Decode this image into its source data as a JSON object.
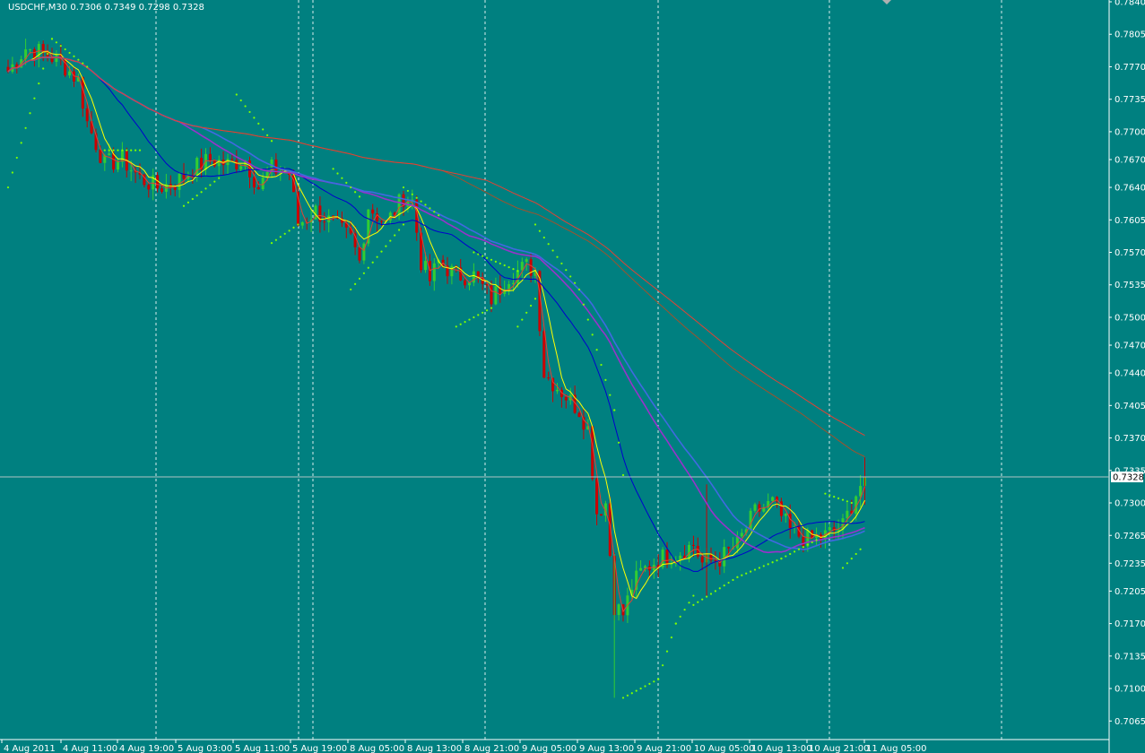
{
  "window": {
    "symbol_label": "USDCHF,M30",
    "ohlc_label": "0.7306 0.7349 0.7298 0.7328"
  },
  "colors": {
    "background": "#008080",
    "axis": "#ffffff",
    "bull": "#32cd32",
    "bear": "#cc0000",
    "sar": "#7fff00",
    "ma_yellow": "#ffff00",
    "ma_red": "#e34234",
    "ma_blue": "#0000cd",
    "ma_magenta": "#9932cc",
    "ma_slate": "#4169e1",
    "ma_brown": "#a0522d",
    "grid": "#ffffff"
  },
  "chart_data": {
    "type": "candlestick",
    "symbol": "USDCHF",
    "timeframe": "M30",
    "last_price": "0.7328",
    "ylim": [
      0.7045,
      0.784
    ],
    "y_ticks": [
      "0.7840",
      "0.7805",
      "0.7770",
      "0.7735",
      "0.7700",
      "0.7670",
      "0.7640",
      "0.7605",
      "0.7570",
      "0.7535",
      "0.7500",
      "0.7470",
      "0.7440",
      "0.7405",
      "0.7370",
      "0.7335",
      "0.7300",
      "0.7265",
      "0.7235",
      "0.7205",
      "0.7170",
      "0.7135",
      "0.7100",
      "0.7065"
    ],
    "x_ticks": [
      "4 Aug 2011",
      "4 Aug 11:00",
      "4 Aug 19:00",
      "5 Aug 03:00",
      "5 Aug 11:00",
      "5 Aug 19:00",
      "8 Aug 05:00",
      "8 Aug 13:00",
      "8 Aug 21:00",
      "9 Aug 05:00",
      "9 Aug 13:00",
      "9 Aug 21:00",
      "10 Aug 05:00",
      "10 Aug 13:00",
      "10 Aug 21:00",
      "11 Aug 05:00"
    ],
    "n_bars": 196,
    "close_anchors": [
      [
        0,
        0.7765
      ],
      [
        4,
        0.779
      ],
      [
        8,
        0.7785
      ],
      [
        12,
        0.7775
      ],
      [
        16,
        0.7755
      ],
      [
        18,
        0.771
      ],
      [
        22,
        0.7665
      ],
      [
        26,
        0.767
      ],
      [
        30,
        0.765
      ],
      [
        34,
        0.764
      ],
      [
        38,
        0.7645
      ],
      [
        42,
        0.766
      ],
      [
        46,
        0.767
      ],
      [
        50,
        0.7665
      ],
      [
        54,
        0.767
      ],
      [
        57,
        0.764
      ],
      [
        60,
        0.766
      ],
      [
        64,
        0.7655
      ],
      [
        66,
        0.76
      ],
      [
        70,
        0.7615
      ],
      [
        74,
        0.76
      ],
      [
        78,
        0.7585
      ],
      [
        80,
        0.756
      ],
      [
        82,
        0.762
      ],
      [
        86,
        0.76
      ],
      [
        90,
        0.763
      ],
      [
        92,
        0.7625
      ],
      [
        94,
        0.756
      ],
      [
        96,
        0.754
      ],
      [
        98,
        0.756
      ],
      [
        102,
        0.7545
      ],
      [
        106,
        0.7545
      ],
      [
        110,
        0.752
      ],
      [
        114,
        0.7545
      ],
      [
        118,
        0.7555
      ],
      [
        120,
        0.755
      ],
      [
        122,
        0.744
      ],
      [
        126,
        0.742
      ],
      [
        130,
        0.74
      ],
      [
        132,
        0.738
      ],
      [
        134,
        0.729
      ],
      [
        136,
        0.73
      ],
      [
        138,
        0.719
      ],
      [
        140,
        0.718
      ],
      [
        142,
        0.721
      ],
      [
        144,
        0.7225
      ],
      [
        148,
        0.724
      ],
      [
        152,
        0.7245
      ],
      [
        156,
        0.7255
      ],
      [
        158,
        0.7235
      ],
      [
        162,
        0.724
      ],
      [
        166,
        0.7255
      ],
      [
        170,
        0.729
      ],
      [
        174,
        0.73
      ],
      [
        178,
        0.727
      ],
      [
        182,
        0.726
      ],
      [
        186,
        0.7265
      ],
      [
        190,
        0.7275
      ],
      [
        193,
        0.731
      ],
      [
        195,
        0.7328
      ]
    ],
    "sar_segments": [
      [
        [
          0,
          0.764
        ],
        [
          10,
          0.78
        ],
        [
          18,
          0.777
        ]
      ],
      [
        [
          22,
          0.768
        ],
        [
          30,
          0.768
        ]
      ],
      [
        [
          40,
          0.762
        ],
        [
          48,
          0.765
        ]
      ],
      [
        [
          52,
          0.774
        ],
        [
          60,
          0.769
        ]
      ],
      [
        [
          60,
          0.758
        ],
        [
          66,
          0.76
        ]
      ],
      [
        [
          74,
          0.766
        ],
        [
          80,
          0.763
        ]
      ],
      [
        [
          78,
          0.753
        ],
        [
          90,
          0.76
        ]
      ],
      [
        [
          90,
          0.764
        ],
        [
          98,
          0.761
        ]
      ],
      [
        [
          102,
          0.749
        ],
        [
          110,
          0.751
        ]
      ],
      [
        [
          106,
          0.757
        ],
        [
          116,
          0.755
        ]
      ],
      [
        [
          116,
          0.749
        ],
        [
          120,
          0.752
        ]
      ],
      [
        [
          120,
          0.76
        ],
        [
          130,
          0.753
        ],
        [
          138,
          0.74
        ],
        [
          140,
          0.733
        ]
      ],
      [
        [
          140,
          0.709
        ],
        [
          148,
          0.711
        ],
        [
          152,
          0.717
        ],
        [
          156,
          0.72
        ]
      ],
      [
        [
          156,
          0.719
        ],
        [
          166,
          0.722
        ],
        [
          176,
          0.724
        ],
        [
          184,
          0.726
        ]
      ],
      [
        [
          186,
          0.731
        ],
        [
          192,
          0.73
        ]
      ],
      [
        [
          190,
          0.723
        ],
        [
          194,
          0.725
        ]
      ]
    ],
    "moving_averages": [
      {
        "period": 3,
        "color_key": "ma_red"
      },
      {
        "period": 6,
        "color_key": "ma_yellow"
      },
      {
        "period": 20,
        "color_key": "ma_blue"
      },
      {
        "period": 40,
        "color_key": "ma_magenta"
      },
      {
        "period": 45,
        "color_key": "ma_slate"
      },
      {
        "period": 100,
        "color_key": "ma_brown"
      },
      {
        "period": 110,
        "color_key": "ma_red"
      }
    ]
  }
}
